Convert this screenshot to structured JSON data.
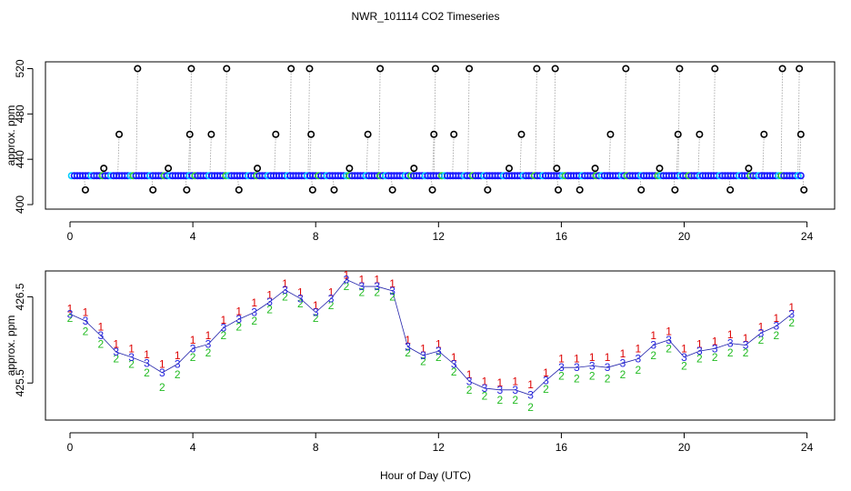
{
  "page": {
    "title": "NWR_101114  CO2 Timeseries",
    "xlabel": "Hour of Day (UTC)"
  },
  "chart_data": [
    {
      "type": "scatter",
      "title": "NWR_101114  CO2 Timeseries",
      "ylabel": "approx. ppm",
      "xlabel": "",
      "xlim": [
        -0.8,
        24.9
      ],
      "ylim": [
        396,
        526
      ],
      "xticks": [
        0,
        4,
        8,
        12,
        16,
        20,
        24
      ],
      "xtick_labels": [
        "0",
        "4",
        "8",
        "12",
        "16",
        "20",
        "24"
      ],
      "yticks": [
        400,
        440,
        480,
        520
      ],
      "ytick_labels": [
        "400",
        "440",
        "480",
        "520"
      ],
      "baseline": {
        "x_start": 0.05,
        "x_end": 23.8,
        "y": 425.5,
        "colors": [
          "#1a1aff",
          "#00ccff",
          "#33cc33"
        ]
      },
      "series": [
        {
          "name": "high outliers",
          "marker": "o",
          "color": "#000000",
          "x": [
            1.1,
            1.6,
            2.2,
            3.2,
            3.9,
            3.95,
            4.6,
            5.1,
            6.1,
            6.7,
            7.2,
            7.8,
            7.85,
            9.1,
            9.7,
            10.1,
            11.2,
            11.85,
            11.9,
            12.5,
            13.0,
            14.3,
            14.7,
            15.2,
            15.8,
            15.85,
            17.1,
            17.6,
            18.1,
            19.2,
            19.8,
            19.85,
            20.5,
            21.0,
            22.1,
            22.6,
            23.2,
            23.75,
            23.8
          ],
          "y": [
            432,
            462,
            520,
            432,
            462,
            520,
            462,
            520,
            432,
            462,
            520,
            520,
            462,
            432,
            462,
            520,
            432,
            462,
            520,
            462,
            520,
            432,
            462,
            520,
            520,
            432,
            432,
            462,
            520,
            432,
            462,
            520,
            462,
            520,
            432,
            462,
            520,
            520,
            462
          ]
        },
        {
          "name": "low outliers",
          "marker": "o",
          "color": "#000000",
          "x": [
            0.5,
            2.7,
            3.8,
            5.5,
            7.9,
            8.6,
            10.5,
            11.8,
            13.6,
            15.9,
            16.6,
            18.6,
            19.7,
            21.5,
            23.9
          ],
          "y": [
            413,
            413,
            413,
            413,
            413,
            413,
            413,
            413,
            413,
            413,
            413,
            413,
            413,
            413,
            413
          ]
        }
      ]
    },
    {
      "type": "scatter",
      "ylabel": "approx. ppm",
      "xlabel": "Hour of Day (UTC)",
      "xlim": [
        -0.8,
        24.9
      ],
      "ylim": [
        425.07,
        426.8
      ],
      "xticks": [
        0,
        4,
        8,
        12,
        16,
        20,
        24
      ],
      "xtick_labels": [
        "0",
        "4",
        "8",
        "12",
        "16",
        "20",
        "24"
      ],
      "yticks": [
        425.5,
        426.5
      ],
      "ytick_labels": [
        "425.5",
        "426.5"
      ],
      "series": [
        {
          "name": "1",
          "label": "1",
          "color": "#dd0000",
          "x": [
            0,
            0.5,
            1,
            1.5,
            2,
            2.5,
            3,
            3.5,
            4,
            4.5,
            5,
            5.5,
            6,
            6.5,
            7,
            7.5,
            8,
            8.5,
            9,
            9.5,
            10,
            10.5,
            11,
            11.5,
            12,
            12.5,
            13,
            13.5,
            14,
            14.5,
            15,
            15.5,
            16,
            16.5,
            17,
            17.5,
            18,
            18.5,
            19,
            19.5,
            20,
            20.5,
            21,
            21.5,
            22,
            22.5,
            23,
            23.5
          ],
          "y": [
            426.36,
            426.32,
            426.15,
            425.95,
            425.9,
            425.83,
            425.72,
            425.82,
            426.0,
            426.05,
            426.23,
            426.33,
            426.43,
            426.52,
            426.65,
            426.55,
            426.4,
            426.55,
            426.75,
            426.7,
            426.7,
            426.65,
            426.0,
            425.9,
            425.95,
            425.8,
            425.6,
            425.52,
            425.5,
            425.52,
            425.48,
            425.62,
            425.78,
            425.78,
            425.8,
            425.8,
            425.84,
            425.9,
            426.05,
            426.1,
            425.9,
            425.95,
            425.98,
            426.06,
            426.02,
            426.15,
            426.25,
            426.38
          ]
        },
        {
          "name": "2",
          "label": "2",
          "color": "#22bb22",
          "x": [
            0,
            0.5,
            1,
            1.5,
            2,
            2.5,
            3,
            3.5,
            4,
            4.5,
            5,
            5.5,
            6,
            6.5,
            7,
            7.5,
            8,
            8.5,
            9,
            9.5,
            10,
            10.5,
            11,
            11.5,
            12,
            12.5,
            13,
            13.5,
            14,
            14.5,
            15,
            15.5,
            16,
            16.5,
            17,
            17.5,
            18,
            18.5,
            19,
            19.5,
            20,
            20.5,
            21,
            21.5,
            22,
            22.5,
            23,
            23.5
          ],
          "y": [
            426.25,
            426.1,
            425.95,
            425.78,
            425.72,
            425.62,
            425.45,
            425.6,
            425.8,
            425.85,
            426.05,
            426.15,
            426.22,
            426.35,
            426.5,
            426.42,
            426.25,
            426.4,
            426.62,
            426.55,
            426.55,
            426.5,
            425.85,
            425.75,
            425.8,
            425.63,
            425.42,
            425.35,
            425.3,
            425.3,
            425.22,
            425.43,
            425.58,
            425.55,
            425.58,
            425.55,
            425.6,
            425.65,
            425.82,
            425.9,
            425.7,
            425.78,
            425.8,
            425.85,
            425.85,
            426.0,
            426.05,
            426.2
          ]
        },
        {
          "name": "3",
          "label": "3",
          "color": "#2222dd",
          "x": [
            0,
            0.5,
            1,
            1.5,
            2,
            2.5,
            3,
            3.5,
            4,
            4.5,
            5,
            5.5,
            6,
            6.5,
            7,
            7.5,
            8,
            8.5,
            9,
            9.5,
            10,
            10.5,
            11,
            11.5,
            12,
            12.5,
            13,
            13.5,
            14,
            14.5,
            15,
            15.5,
            16,
            16.5,
            17,
            17.5,
            18,
            18.5,
            19,
            19.5,
            20,
            20.5,
            21,
            21.5,
            22,
            22.5,
            23,
            23.5
          ],
          "y": [
            426.3,
            426.22,
            426.05,
            425.86,
            425.8,
            425.73,
            425.62,
            425.72,
            425.9,
            425.95,
            426.14,
            426.24,
            426.32,
            426.44,
            426.58,
            426.48,
            426.32,
            426.48,
            426.7,
            426.62,
            426.62,
            426.57,
            425.92,
            425.82,
            425.87,
            425.72,
            425.52,
            425.44,
            425.42,
            425.42,
            425.36,
            425.53,
            425.68,
            425.68,
            425.7,
            425.68,
            425.73,
            425.78,
            425.94,
            426.0,
            425.8,
            425.87,
            425.9,
            425.96,
            425.94,
            426.08,
            426.16,
            426.3
          ]
        }
      ]
    }
  ]
}
